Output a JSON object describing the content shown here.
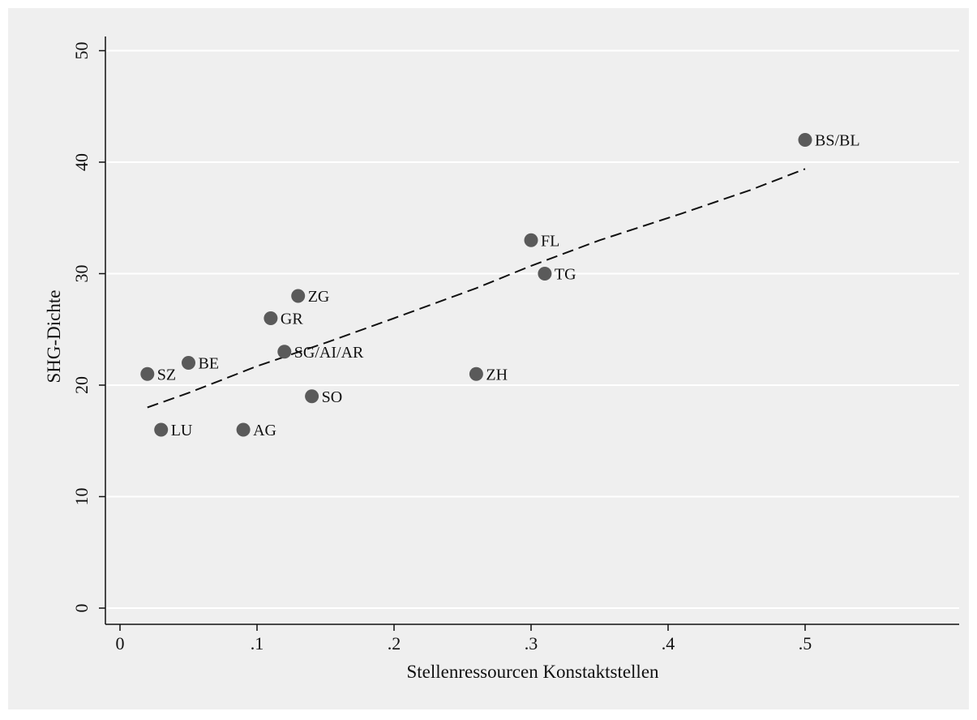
{
  "chart_data": {
    "type": "scatter",
    "title": "",
    "xlabel": "Stellenressourcen Konstaktstellen",
    "ylabel": "SHG-Dichte",
    "xlim": [
      0,
      0.6
    ],
    "ylim": [
      0,
      50
    ],
    "x_ticks": [
      {
        "value": 0,
        "label": "0"
      },
      {
        "value": 0.1,
        "label": ".1"
      },
      {
        "value": 0.2,
        "label": ".2"
      },
      {
        "value": 0.3,
        "label": ".3"
      },
      {
        "value": 0.4,
        "label": ".4"
      },
      {
        "value": 0.5,
        "label": ".5"
      }
    ],
    "y_ticks": [
      {
        "value": 0,
        "label": "0"
      },
      {
        "value": 10,
        "label": "10"
      },
      {
        "value": 20,
        "label": "20"
      },
      {
        "value": 30,
        "label": "30"
      },
      {
        "value": 40,
        "label": "40"
      },
      {
        "value": 50,
        "label": "50"
      }
    ],
    "grid": "horizontal",
    "background_color": "#efefef",
    "marker_color": "#5a5a5a",
    "fit_line_color": "#111111",
    "points": [
      {
        "label": "BS/BL",
        "x": 0.5,
        "y": 42
      },
      {
        "label": "FL",
        "x": 0.3,
        "y": 33
      },
      {
        "label": "TG",
        "x": 0.31,
        "y": 30
      },
      {
        "label": "ZG",
        "x": 0.13,
        "y": 28
      },
      {
        "label": "GR",
        "x": 0.11,
        "y": 26
      },
      {
        "label": "SG/AI/AR",
        "x": 0.12,
        "y": 23
      },
      {
        "label": "BE",
        "x": 0.05,
        "y": 22
      },
      {
        "label": "SZ",
        "x": 0.02,
        "y": 21
      },
      {
        "label": "ZH",
        "x": 0.26,
        "y": 21
      },
      {
        "label": "SO",
        "x": 0.14,
        "y": 19
      },
      {
        "label": "LU",
        "x": 0.03,
        "y": 16
      },
      {
        "label": "AG",
        "x": 0.09,
        "y": 16
      }
    ],
    "fit_line": {
      "style": "dashed",
      "x": [
        0.02,
        0.05,
        0.1,
        0.15,
        0.2,
        0.26,
        0.3,
        0.35,
        0.41,
        0.46,
        0.5
      ],
      "y": [
        18.0,
        19.3,
        21.7,
        23.8,
        26.0,
        28.7,
        30.7,
        33.0,
        35.4,
        37.5,
        39.4
      ]
    }
  }
}
